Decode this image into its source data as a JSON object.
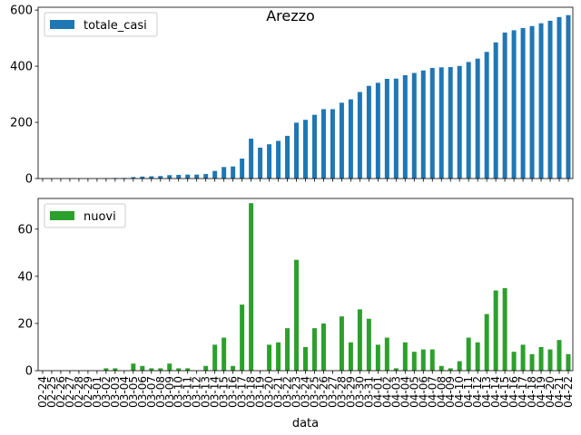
{
  "figure": {
    "title": "Arezzo"
  },
  "chart_data": [
    {
      "type": "bar",
      "title": "Arezzo",
      "xlabel": "",
      "ylabel": "",
      "ylim": [
        0,
        610
      ],
      "yticks": [
        0,
        200,
        400,
        600
      ],
      "legend_position": "top-left",
      "grid": false,
      "categories": [
        "02-24",
        "02-25",
        "02-26",
        "02-27",
        "02-28",
        "02-29",
        "03-01",
        "03-02",
        "03-03",
        "03-04",
        "03-05",
        "03-06",
        "03-07",
        "03-08",
        "03-09",
        "03-10",
        "03-11",
        "03-12",
        "03-13",
        "03-14",
        "03-15",
        "03-16",
        "03-17",
        "03-18",
        "03-19",
        "03-20",
        "03-21",
        "03-22",
        "03-23",
        "03-24",
        "03-25",
        "03-26",
        "03-27",
        "03-28",
        "03-29",
        "03-30",
        "03-31",
        "04-01",
        "04-02",
        "04-03",
        "04-04",
        "04-05",
        "04-06",
        "04-07",
        "04-08",
        "04-09",
        "04-10",
        "04-11",
        "04-12",
        "04-13",
        "04-14",
        "04-15",
        "04-16",
        "04-17",
        "04-18",
        "04-19",
        "04-20",
        "04-21",
        "04-22"
      ],
      "series": [
        {
          "name": "totale_casi",
          "color": "#1f77b4",
          "values": [
            0,
            0,
            0,
            0,
            0,
            0,
            0,
            1,
            2,
            2,
            5,
            7,
            8,
            9,
            12,
            13,
            14,
            14,
            16,
            27,
            41,
            43,
            71,
            142,
            110,
            122,
            134,
            152,
            199,
            209,
            227,
            247,
            247,
            270,
            282,
            308,
            330,
            341,
            355,
            356,
            368,
            376,
            385,
            394,
            396,
            397,
            401,
            415,
            427,
            451,
            485,
            520,
            528,
            536,
            543,
            553,
            562,
            575,
            582
          ]
        }
      ]
    },
    {
      "type": "bar",
      "xlabel": "data",
      "ylabel": "",
      "ylim": [
        0,
        73
      ],
      "yticks": [
        0,
        20,
        40,
        60
      ],
      "legend_position": "top-left",
      "grid": false,
      "categories": [
        "02-24",
        "02-25",
        "02-26",
        "02-27",
        "02-28",
        "02-29",
        "03-01",
        "03-02",
        "03-03",
        "03-04",
        "03-05",
        "03-06",
        "03-07",
        "03-08",
        "03-09",
        "03-10",
        "03-11",
        "03-12",
        "03-13",
        "03-14",
        "03-15",
        "03-16",
        "03-17",
        "03-18",
        "03-19",
        "03-20",
        "03-21",
        "03-22",
        "03-23",
        "03-24",
        "03-25",
        "03-26",
        "03-27",
        "03-28",
        "03-29",
        "03-30",
        "03-31",
        "04-01",
        "04-02",
        "04-03",
        "04-04",
        "04-05",
        "04-06",
        "04-07",
        "04-08",
        "04-09",
        "04-10",
        "04-11",
        "04-12",
        "04-13",
        "04-14",
        "04-15",
        "04-16",
        "04-17",
        "04-18",
        "04-19",
        "04-20",
        "04-21",
        "04-22"
      ],
      "series": [
        {
          "name": "nuovi",
          "color": "#2ca02c",
          "values": [
            0,
            0,
            0,
            0,
            0,
            0,
            0,
            1,
            1,
            0,
            3,
            2,
            1,
            1,
            3,
            1,
            1,
            0,
            2,
            11,
            14,
            2,
            28,
            71,
            0,
            11,
            12,
            18,
            47,
            10,
            18,
            20,
            0,
            23,
            12,
            26,
            22,
            11,
            14,
            1,
            12,
            8,
            9,
            9,
            2,
            1,
            4,
            14,
            12,
            24,
            34,
            35,
            8,
            11,
            7,
            10,
            9,
            13,
            7
          ]
        }
      ]
    }
  ]
}
